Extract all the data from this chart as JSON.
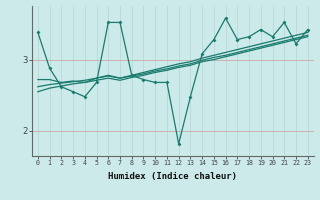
{
  "xlabel": "Humidex (Indice chaleur)",
  "xlim": [
    -0.5,
    23.5
  ],
  "ylim": [
    1.65,
    3.75
  ],
  "bg_color": "#cceaea",
  "line_color": "#1a7a6e",
  "grid_color_v": "#b8d8d8",
  "grid_color_h": "#c8a8a8",
  "x_ticks": [
    0,
    1,
    2,
    3,
    4,
    5,
    6,
    7,
    8,
    9,
    10,
    11,
    12,
    13,
    14,
    15,
    16,
    17,
    18,
    19,
    20,
    21,
    22,
    23
  ],
  "y_ticks": [
    2,
    3
  ],
  "series_main": [
    3.38,
    2.88,
    2.62,
    2.55,
    2.48,
    2.68,
    3.52,
    3.52,
    2.78,
    2.72,
    2.68,
    2.68,
    1.82,
    2.48,
    3.08,
    3.28,
    3.58,
    3.28,
    3.32,
    3.42,
    3.32,
    3.52,
    3.22,
    3.42
  ],
  "series_trend1": [
    2.72,
    2.72,
    2.68,
    2.7,
    2.68,
    2.74,
    2.78,
    2.74,
    2.78,
    2.82,
    2.86,
    2.9,
    2.94,
    2.97,
    3.02,
    3.06,
    3.1,
    3.14,
    3.18,
    3.22,
    3.26,
    3.3,
    3.34,
    3.38
  ],
  "series_trend2": [
    2.62,
    2.65,
    2.67,
    2.69,
    2.71,
    2.74,
    2.77,
    2.74,
    2.77,
    2.8,
    2.84,
    2.87,
    2.91,
    2.94,
    2.99,
    3.03,
    3.06,
    3.1,
    3.14,
    3.18,
    3.22,
    3.26,
    3.3,
    3.34
  ],
  "series_trend3": [
    2.55,
    2.6,
    2.63,
    2.66,
    2.68,
    2.71,
    2.74,
    2.71,
    2.75,
    2.78,
    2.82,
    2.85,
    2.89,
    2.92,
    2.97,
    3.0,
    3.04,
    3.08,
    3.12,
    3.16,
    3.2,
    3.24,
    3.28,
    3.32
  ]
}
